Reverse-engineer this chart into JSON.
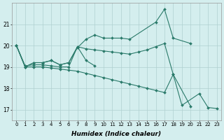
{
  "xlabel": "Humidex (Indice chaleur)",
  "bg_color": "#d4eeee",
  "grid_color": "#b0d0d0",
  "line_color": "#2a7a6a",
  "ylim": [
    16.5,
    22.0
  ],
  "yticks": [
    17,
    18,
    19,
    20,
    21
  ],
  "xlim": [
    -0.5,
    23.5
  ],
  "xticks": [
    0,
    1,
    2,
    3,
    4,
    5,
    6,
    7,
    8,
    9,
    10,
    11,
    12,
    13,
    14,
    15,
    16,
    17,
    18,
    19,
    20,
    21,
    22,
    23
  ],
  "lines": [
    {
      "x": [
        0,
        1,
        2,
        3,
        4,
        5,
        6,
        7,
        8,
        9,
        10,
        11,
        12,
        13,
        16,
        17,
        18,
        20
      ],
      "y": [
        20.0,
        19.0,
        19.2,
        19.2,
        19.3,
        19.1,
        19.2,
        19.9,
        20.3,
        20.5,
        20.35,
        20.35,
        20.35,
        20.3,
        21.1,
        21.7,
        20.35,
        20.1
      ]
    },
    {
      "x": [
        0,
        1,
        2,
        3,
        4,
        5,
        6,
        7,
        8,
        9
      ],
      "y": [
        20.0,
        19.0,
        19.2,
        19.2,
        19.3,
        19.1,
        19.2,
        19.95,
        19.3,
        19.05
      ]
    },
    {
      "x": [
        0,
        1,
        2,
        3,
        4,
        5,
        6,
        7,
        8,
        9,
        10,
        11,
        12,
        13,
        14,
        15,
        16,
        17,
        18,
        20
      ],
      "y": [
        20.0,
        19.05,
        19.1,
        19.1,
        19.05,
        19.0,
        19.0,
        19.95,
        19.85,
        19.8,
        19.75,
        19.7,
        19.65,
        19.6,
        19.7,
        19.8,
        19.95,
        20.1,
        18.65,
        17.15
      ]
    },
    {
      "x": [
        0,
        1,
        2,
        3,
        4,
        5,
        6,
        7,
        8,
        9,
        10,
        11,
        12,
        13,
        14,
        15,
        16,
        17,
        18,
        19,
        21,
        22,
        23
      ],
      "y": [
        20.0,
        19.0,
        19.0,
        19.0,
        18.95,
        18.9,
        18.85,
        18.8,
        18.7,
        18.6,
        18.5,
        18.4,
        18.3,
        18.2,
        18.1,
        18.0,
        17.9,
        17.8,
        18.65,
        17.2,
        17.75,
        17.1,
        17.05
      ]
    }
  ]
}
